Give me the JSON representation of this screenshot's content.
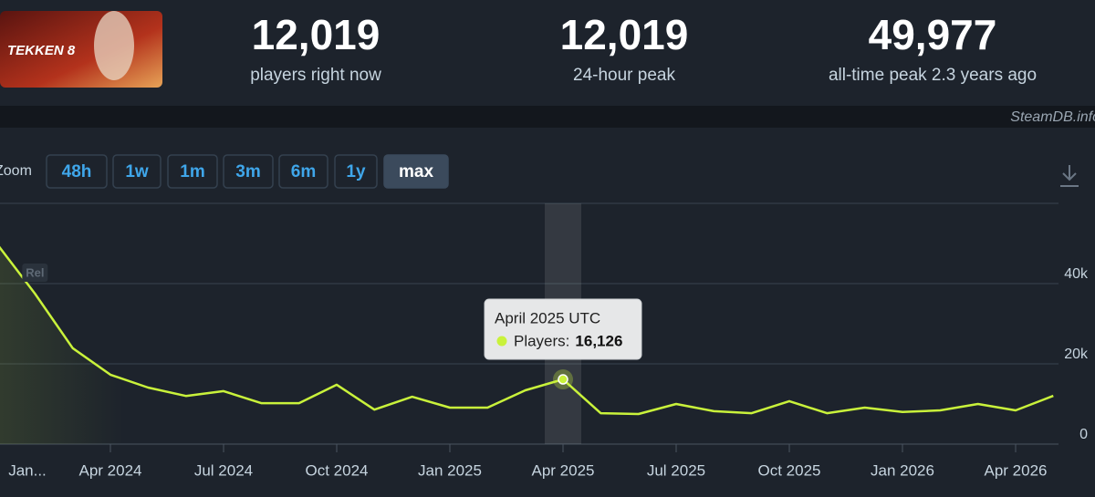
{
  "header": {
    "game_logo": "TEKKEN 8",
    "stats": [
      {
        "value": "12,019",
        "label": "players right now"
      },
      {
        "value": "12,019",
        "label": "24-hour peak"
      },
      {
        "value": "49,977",
        "label": "all-time peak 2.3 years ago"
      }
    ]
  },
  "watermark": "SteamDB.info",
  "zoom": {
    "label": "Zoom",
    "buttons": [
      "48h",
      "1w",
      "1m",
      "3m",
      "6m",
      "1y",
      "max"
    ],
    "active": 6
  },
  "chart_data": {
    "type": "line",
    "x": [
      "2024-01",
      "2024-02",
      "2024-03",
      "2024-04",
      "2024-05",
      "2024-06",
      "2024-07",
      "2024-08",
      "2024-09",
      "2024-10",
      "2024-11",
      "2024-12",
      "2025-01",
      "2025-02",
      "2025-03",
      "2025-04",
      "2025-05",
      "2025-06",
      "2025-07",
      "2025-08",
      "2025-09",
      "2025-10",
      "2025-11",
      "2025-12",
      "2026-01",
      "2026-02",
      "2026-03",
      "2026-04",
      "2026-05"
    ],
    "series": [
      {
        "color": "#c9f23b",
        "values": [
          49800,
          37500,
          23900,
          17300,
          14100,
          12000,
          13200,
          10200,
          10200,
          14800,
          8600,
          11800,
          9100,
          9100,
          13400,
          16126,
          7700,
          7500,
          10000,
          8200,
          7700,
          10700,
          7700,
          9100,
          8000,
          8400,
          10000,
          8400,
          12019
        ],
        "value_labels": [
          null,
          null,
          null,
          null,
          null,
          null,
          null,
          null,
          null,
          null,
          null,
          null,
          null,
          null,
          null,
          "16,126",
          null,
          null,
          null,
          null,
          null,
          null,
          null,
          null,
          null,
          null,
          null,
          null,
          null
        ]
      }
    ],
    "ylim": [
      0,
      60000
    ],
    "yticks": [
      0,
      {
        "value": 20000,
        "label": "20k"
      },
      {
        "value": 40000,
        "label": "40k"
      }
    ],
    "xticks": [
      {
        "value": "2024-01",
        "label": "Jan..."
      },
      {
        "value": "2024-04",
        "label": "Apr 2024"
      },
      {
        "value": "2024-07",
        "label": "Jul 2024"
      },
      {
        "value": "2024-10",
        "label": "Oct 2024"
      },
      {
        "value": "2025-01",
        "label": "Jan 2025"
      },
      {
        "value": "2025-04",
        "label": "Apr 2025"
      },
      {
        "value": "2025-07",
        "label": "Jul 2025"
      },
      {
        "value": "2025-10",
        "label": "Oct 2025"
      },
      {
        "value": "2026-01",
        "label": "Jan 2026"
      },
      {
        "value": "2026-04",
        "label": "Apr 2026"
      }
    ],
    "grid": true,
    "tooltip": {
      "title": "April 2025 UTC",
      "label": "Players:"
    },
    "annotations": [
      {
        "x": "2024-02",
        "label": "Rel"
      }
    ]
  }
}
